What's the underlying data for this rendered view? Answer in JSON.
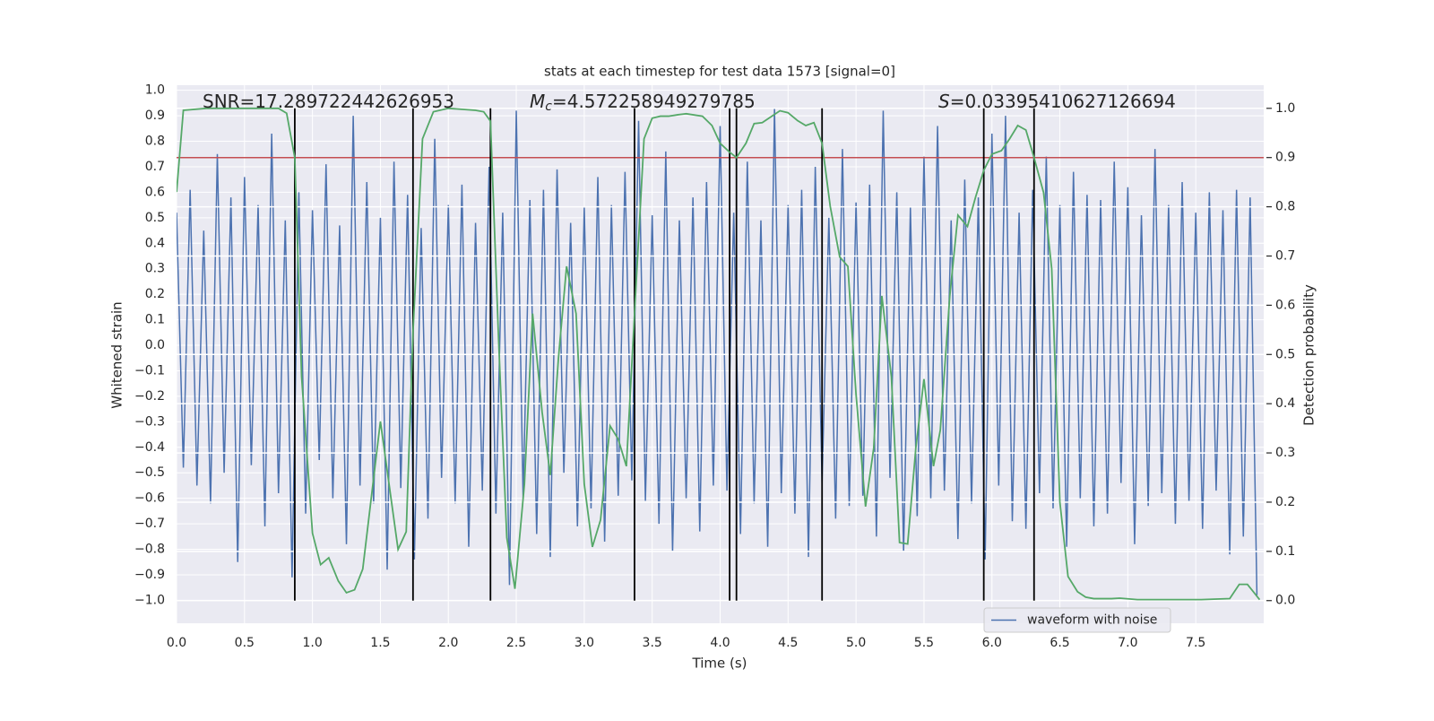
{
  "chart_data": {
    "type": "line",
    "title": "stats at each timestep for test data 1573 [signal=0]",
    "xlabel": "Time (s)",
    "ylabel": "Whitened strain",
    "y2label": "Detection probability",
    "annotations": [
      {
        "text": "SNR=17.289722442626953"
      },
      {
        "symbol": "M",
        "subscript": "c",
        "text": "=4.572258949279785"
      },
      {
        "symbol": "S",
        "text": "=0.03395410627126694"
      }
    ],
    "xlim": [
      0,
      8.0
    ],
    "ylim": [
      -1.09,
      1.02
    ],
    "y2lim": [
      -0.046,
      1.047
    ],
    "xticks": [
      {
        "value": 0,
        "label": "0.0"
      },
      0.5,
      {
        "value": 1,
        "label": "1.0"
      },
      1.5,
      {
        "value": 2,
        "label": "2.0"
      },
      2.5,
      {
        "value": 3,
        "label": "3.0"
      },
      3.5,
      {
        "value": 4,
        "label": "4.0"
      },
      4.5,
      {
        "value": 5,
        "label": "5.0"
      },
      5.5,
      {
        "value": 6,
        "label": "6.0"
      },
      6.5,
      {
        "value": 7,
        "label": "7.0"
      },
      7.5
    ],
    "yticks": [
      {
        "value": 1,
        "label": "1.0"
      },
      0.9,
      0.8,
      0.7,
      0.6,
      0.5,
      0.4,
      0.3,
      0.2,
      0.1,
      {
        "value": 0,
        "label": "0.0"
      },
      {
        "value": -0.1,
        "label": "−0.1"
      },
      {
        "value": -0.2,
        "label": "−0.2"
      },
      {
        "value": -0.3,
        "label": "−0.3"
      },
      {
        "value": -0.4,
        "label": "−0.4"
      },
      {
        "value": -0.5,
        "label": "−0.5"
      },
      {
        "value": -0.6,
        "label": "−0.6"
      },
      {
        "value": -0.7,
        "label": "−0.7"
      },
      {
        "value": -0.8,
        "label": "−0.8"
      },
      {
        "value": -0.9,
        "label": "−0.9"
      },
      {
        "value": -1,
        "label": "−1.0"
      }
    ],
    "y2ticks": [
      {
        "value": 0,
        "label": "0.0"
      },
      0.1,
      0.2,
      0.3,
      0.4,
      0.5,
      0.6,
      0.7,
      0.8,
      0.9,
      {
        "value": 1,
        "label": "1.0"
      }
    ],
    "grid": true,
    "legend": "lower right",
    "series": [
      {
        "name": "waveform with noise",
        "color": "#4c72b0",
        "x": [
          0,
          0.05,
          0.1,
          0.15,
          0.2,
          0.25,
          0.3,
          0.35,
          0.4,
          0.45,
          0.5,
          0.55,
          0.6,
          0.65,
          0.7,
          0.75,
          0.8,
          0.85,
          0.9,
          0.95,
          1,
          1.05,
          1.1,
          1.15,
          1.2,
          1.25,
          1.3,
          1.35,
          1.4,
          1.45,
          1.5,
          1.55,
          1.6,
          1.65,
          1.7,
          1.75,
          1.8,
          1.85,
          1.9,
          1.95,
          2,
          2.05,
          2.1,
          2.15,
          2.2,
          2.25,
          2.3,
          2.35,
          2.4,
          2.45,
          2.5,
          2.55,
          2.6,
          2.65,
          2.7,
          2.75,
          2.8,
          2.85,
          2.9,
          2.95,
          3,
          3.05,
          3.1,
          3.15,
          3.2,
          3.25,
          3.3,
          3.35,
          3.4,
          3.45,
          3.5,
          3.55,
          3.6,
          3.65,
          3.7,
          3.75,
          3.8,
          3.85,
          3.9,
          3.95,
          4,
          4.05,
          4.1,
          4.15,
          4.2,
          4.25,
          4.3,
          4.35,
          4.4,
          4.45,
          4.5,
          4.55,
          4.6,
          4.65,
          4.7,
          4.75,
          4.8,
          4.85,
          4.9,
          4.95,
          5,
          5.05,
          5.1,
          5.15,
          5.2,
          5.25,
          5.3,
          5.35,
          5.4,
          5.45,
          5.5,
          5.55,
          5.6,
          5.65,
          5.7,
          5.75,
          5.8,
          5.85,
          5.9,
          5.95,
          6,
          6.05,
          6.1,
          6.15,
          6.2,
          6.25,
          6.3,
          6.35,
          6.4,
          6.45,
          6.5,
          6.55,
          6.6,
          6.65,
          6.7,
          6.75,
          6.8,
          6.85,
          6.9,
          6.95,
          7,
          7.05,
          7.1,
          7.15,
          7.2,
          7.25,
          7.3,
          7.35,
          7.4,
          7.45,
          7.5,
          7.55,
          7.6,
          7.65,
          7.7,
          7.75,
          7.8,
          7.85,
          7.9,
          7.95
        ],
        "values": [
          0.52,
          -0.48,
          0.61,
          -0.55,
          0.45,
          -0.62,
          0.75,
          -0.5,
          0.58,
          -0.85,
          0.66,
          -0.47,
          0.55,
          -0.71,
          0.83,
          -0.58,
          0.49,
          -0.91,
          0.6,
          -0.66,
          0.53,
          -0.45,
          0.71,
          -0.6,
          0.47,
          -0.78,
          0.9,
          -0.55,
          0.64,
          -0.62,
          0.5,
          -0.88,
          0.72,
          -0.56,
          0.59,
          -0.84,
          0.46,
          -0.68,
          0.81,
          -0.52,
          0.55,
          -0.62,
          0.63,
          -0.79,
          0.48,
          -0.57,
          0.7,
          -0.66,
          0.52,
          -0.94,
          0.92,
          -0.6,
          0.57,
          -0.74,
          0.61,
          -0.83,
          0.69,
          -0.5,
          0.48,
          -0.71,
          0.54,
          -0.64,
          0.66,
          -0.77,
          0.55,
          -0.59,
          0.68,
          -0.53,
          0.88,
          -0.61,
          0.51,
          -0.7,
          0.76,
          -0.81,
          0.49,
          -0.6,
          0.58,
          -0.73,
          0.64,
          -0.55,
          0.86,
          -0.57,
          0.52,
          -0.74,
          0.72,
          -0.62,
          0.49,
          -0.79,
          0.93,
          -0.58,
          0.55,
          -0.66,
          0.61,
          -0.83,
          0.7,
          -0.54,
          0.5,
          -0.68,
          0.77,
          -0.63,
          0.56,
          -0.59,
          0.63,
          -0.75,
          0.92,
          -0.52,
          0.6,
          -0.81,
          0.54,
          -0.67,
          0.74,
          -0.6,
          0.86,
          -0.57,
          0.49,
          -0.76,
          0.65,
          -0.62,
          0.58,
          -0.84,
          0.83,
          -0.55,
          0.9,
          -0.69,
          0.52,
          -0.72,
          0.61,
          -0.58,
          0.74,
          -0.64,
          0.55,
          -0.79,
          0.68,
          -0.6,
          0.59,
          -0.71,
          0.57,
          -0.66,
          0.72,
          -0.54,
          0.62,
          -0.78,
          0.51,
          -0.63,
          0.77,
          -0.58,
          0.55,
          -0.7,
          0.64,
          -0.61,
          0.52,
          -0.72,
          0.6,
          -0.57,
          0.53,
          -0.82,
          0.61,
          -0.75,
          0.58,
          -0.98
        ]
      }
    ],
    "probability": {
      "color": "#55a868",
      "axis": "y2",
      "x": [
        0,
        0.05,
        0.22,
        0.75,
        0.81,
        0.87,
        0.92,
        1.0,
        1.06,
        1.12,
        1.19,
        1.25,
        1.31,
        1.37,
        1.5,
        1.63,
        1.69,
        1.74,
        1.81,
        1.89,
        2.0,
        2.2,
        2.26,
        2.31,
        2.37,
        2.43,
        2.49,
        2.56,
        2.62,
        2.69,
        2.75,
        2.81,
        2.87,
        2.94,
        3.0,
        3.06,
        3.12,
        3.19,
        3.25,
        3.31,
        3.37,
        3.44,
        3.5,
        3.56,
        3.62,
        3.69,
        3.75,
        3.87,
        3.94,
        4.0,
        4.07,
        4.12,
        4.19,
        4.25,
        4.31,
        4.38,
        4.44,
        4.5,
        4.57,
        4.63,
        4.69,
        4.75,
        4.81,
        4.88,
        4.94,
        5.0,
        5.07,
        5.13,
        5.19,
        5.26,
        5.32,
        5.38,
        5.44,
        5.5,
        5.57,
        5.62,
        5.69,
        5.75,
        5.82,
        5.88,
        5.94,
        6.0,
        6.07,
        6.13,
        6.19,
        6.25,
        6.31,
        6.38,
        6.44,
        6.5,
        6.56,
        6.63,
        6.69,
        6.75,
        6.88,
        6.94,
        7.07,
        7.28,
        7.54,
        7.75,
        7.82,
        7.88,
        7.97
      ],
      "values": [
        0.83,
        0.996,
        1.0,
        1.0,
        0.99,
        0.9,
        0.455,
        0.137,
        0.073,
        0.087,
        0.04,
        0.016,
        0.022,
        0.064,
        0.364,
        0.104,
        0.14,
        0.546,
        0.938,
        0.993,
        1.0,
        0.996,
        0.993,
        0.974,
        0.528,
        0.128,
        0.024,
        0.237,
        0.583,
        0.383,
        0.255,
        0.492,
        0.679,
        0.583,
        0.237,
        0.109,
        0.164,
        0.355,
        0.328,
        0.273,
        0.583,
        0.938,
        0.98,
        0.984,
        0.984,
        0.987,
        0.989,
        0.984,
        0.965,
        0.929,
        0.911,
        0.9,
        0.929,
        0.969,
        0.971,
        0.984,
        0.995,
        0.991,
        0.975,
        0.965,
        0.971,
        0.929,
        0.801,
        0.698,
        0.679,
        0.419,
        0.191,
        0.31,
        0.619,
        0.455,
        0.118,
        0.115,
        0.31,
        0.45,
        0.273,
        0.346,
        0.619,
        0.783,
        0.76,
        0.82,
        0.874,
        0.907,
        0.914,
        0.938,
        0.965,
        0.956,
        0.9,
        0.829,
        0.674,
        0.2,
        0.049,
        0.018,
        0.007,
        0.004,
        0.004,
        0.005,
        0.002,
        0.002,
        0.002,
        0.004,
        0.033,
        0.033,
        0.002
      ]
    },
    "threshold": {
      "value": 0.9,
      "axis": "y2",
      "color": "#c44e52"
    },
    "events": {
      "color": "#000000",
      "x": [
        0.87,
        1.74,
        2.31,
        3.37,
        4.07,
        4.12,
        4.75,
        5.94,
        6.31
      ]
    }
  }
}
